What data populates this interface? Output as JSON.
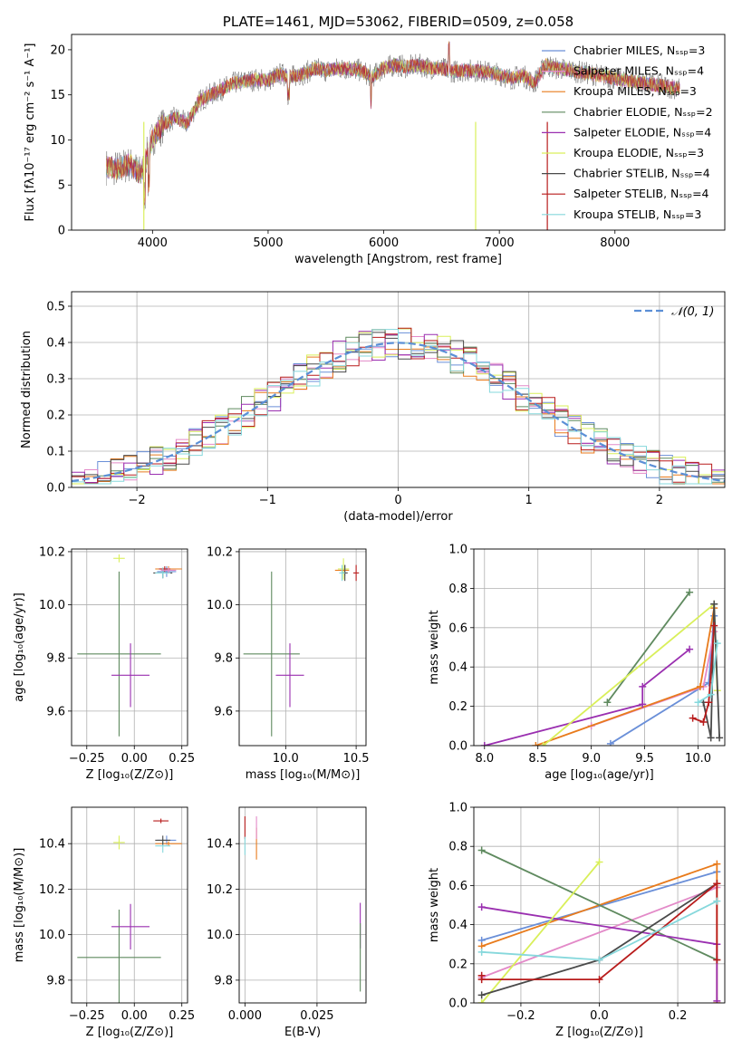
{
  "chart_data": [
    {
      "type": "line",
      "title": "PLATE=1461, MJD=53062, FIBERID=0509, z=0.058",
      "xlabel": "wavelength [Angstrom, rest frame]",
      "ylabel": "Flux [fλ10⁻¹⁷ erg cm⁻² s⁻¹ A⁻¹]",
      "xlim": [
        3300,
        8950
      ],
      "ylim": [
        0,
        21.7
      ],
      "xticks": [
        4000,
        5000,
        6000,
        7000,
        8000
      ],
      "yticks": [
        0,
        5,
        10,
        15,
        20
      ],
      "legend_position": "right",
      "legend": [
        {
          "label": "Chabrier MILES, Nₛₛₚ=3",
          "color": "#6a8fd8"
        },
        {
          "label": "Salpeter MILES, Nₛₛₚ=4",
          "color": "#e38ac8"
        },
        {
          "label": "Kroupa MILES, Nₛₛₚ=3",
          "color": "#e87b1c"
        },
        {
          "label": "Chabrier ELODIE, Nₛₛₚ=2",
          "color": "#5f8a5f"
        },
        {
          "label": "Salpeter ELODIE, Nₛₛₚ=4",
          "color": "#9a2fb0"
        },
        {
          "label": "Kroupa ELODIE, Nₛₛₚ=3",
          "color": "#d9ef5a"
        },
        {
          "label": "Chabrier STELIB, Nₛₛₚ=4",
          "color": "#4a4a4a"
        },
        {
          "label": "Salpeter STELIB, Nₛₛₚ=4",
          "color": "#b81c1c"
        },
        {
          "label": "Kroupa STELIB, Nₛₛₚ=3",
          "color": "#86d8dc"
        }
      ],
      "continuum": {
        "x": [
          3600,
          3700,
          3800,
          3900,
          4000,
          4100,
          4200,
          4300,
          4400,
          4500,
          4600,
          4700,
          4800,
          4900,
          5000,
          5100,
          5200,
          5300,
          5400,
          5500,
          5600,
          5700,
          5800,
          5900,
          6000,
          6100,
          6200,
          6300,
          6400,
          6500,
          6600,
          6700,
          6800,
          6900,
          7000,
          7100,
          7200,
          7300,
          7400,
          7500,
          7600,
          7700,
          7800,
          7900,
          8000,
          8100,
          8200,
          8300,
          8400,
          8500,
          8600
        ],
        "y": [
          7.0,
          6.8,
          7.3,
          6.2,
          10.2,
          11.8,
          12.5,
          11.8,
          14.3,
          15.0,
          15.6,
          16.3,
          16.5,
          16.7,
          16.6,
          17.3,
          17.0,
          17.3,
          17.9,
          17.7,
          17.9,
          17.9,
          17.7,
          17.0,
          18.0,
          18.3,
          18.1,
          18.3,
          18.0,
          17.9,
          17.6,
          17.7,
          17.7,
          17.5,
          17.3,
          16.8,
          17.2,
          16.3,
          18.3,
          17.9,
          17.8,
          17.5,
          17.3,
          17.1,
          16.8,
          16.6,
          16.4,
          16.2,
          16.0,
          15.8,
          15.7
        ]
      }
    },
    {
      "type": "step",
      "xlabel": "(data-model)/error",
      "ylabel": "Normed distribution",
      "xlim": [
        -2.5,
        2.5
      ],
      "ylim": [
        0,
        0.54
      ],
      "xticks": [
        -2,
        -1,
        0,
        1,
        2
      ],
      "yticks": [
        0.0,
        0.1,
        0.2,
        0.3,
        0.4,
        0.5
      ],
      "legend": [
        {
          "label": "𝒩(0, 1)",
          "color": "#5b8fd6",
          "style": "dashed"
        }
      ],
      "bin_width": 0.1,
      "bins_start": -2.5
    },
    {
      "type": "scatter",
      "xlabel": "Z [log₁₀(Z/Z⊙)]",
      "ylabel": "age  [log₁₀(age/yr)]",
      "xlim": [
        -0.33,
        0.28
      ],
      "ylim": [
        9.47,
        10.21
      ],
      "xticks": [
        -0.25,
        0.0,
        0.25
      ],
      "yticks": [
        9.6,
        9.8,
        10.0,
        10.2
      ],
      "points": [
        {
          "model": "Chabrier ELODIE",
          "x": -0.08,
          "y": 9.815,
          "xerr": 0.22,
          "yerr": 0.31
        },
        {
          "model": "Salpeter ELODIE",
          "x": -0.02,
          "y": 9.735,
          "xerr": 0.1,
          "yerr": 0.12
        },
        {
          "model": "Kroupa ELODIE",
          "x": -0.08,
          "y": 10.175,
          "xerr": 0.03,
          "yerr": 0.015
        },
        {
          "model": "Chabrier MILES",
          "x": 0.17,
          "y": 10.125,
          "xerr": 0.05,
          "yerr": 0.02
        },
        {
          "model": "Kroupa MILES",
          "x": 0.18,
          "y": 10.135,
          "xerr": 0.07,
          "yerr": 0.01
        },
        {
          "model": "Chabrier STELIB",
          "x": 0.15,
          "y": 10.12,
          "xerr": 0.05,
          "yerr": 0.02
        },
        {
          "model": "Salpeter STELIB",
          "x": 0.16,
          "y": 10.135,
          "xerr": 0.03,
          "yerr": 0.01
        },
        {
          "model": "Kroupa STELIB",
          "x": 0.15,
          "y": 10.12,
          "xerr": 0.04,
          "yerr": 0.02
        },
        {
          "model": "Salpeter MILES",
          "x": 0.18,
          "y": 10.13,
          "xerr": 0.04,
          "yerr": 0.01
        }
      ]
    },
    {
      "type": "scatter",
      "xlabel": "mass [log₁₀(M/M⊙)]",
      "ylabel": "",
      "xlim": [
        9.67,
        10.57
      ],
      "ylim": [
        9.47,
        10.21
      ],
      "xticks": [
        10.0,
        10.5
      ],
      "yticks": [
        9.6,
        9.8,
        10.0,
        10.2
      ],
      "points": [
        {
          "model": "Chabrier ELODIE",
          "x": 9.9,
          "y": 9.815,
          "xerr": 0.2,
          "yerr": 0.31
        },
        {
          "model": "Salpeter ELODIE",
          "x": 10.03,
          "y": 9.735,
          "xerr": 0.1,
          "yerr": 0.12
        },
        {
          "model": "Kroupa ELODIE",
          "x": 10.41,
          "y": 10.135,
          "xerr": 0.04,
          "yerr": 0.04
        },
        {
          "model": "Chabrier MILES",
          "x": 10.42,
          "y": 10.13,
          "xerr": 0.02,
          "yerr": 0.02
        },
        {
          "model": "Kroupa MILES",
          "x": 10.4,
          "y": 10.13,
          "xerr": 0.05,
          "yerr": 0.01
        },
        {
          "model": "Chabrier STELIB",
          "x": 10.42,
          "y": 10.12,
          "xerr": 0.02,
          "yerr": 0.03
        },
        {
          "model": "Salpeter STELIB",
          "x": 10.5,
          "y": 10.12,
          "xerr": 0.02,
          "yerr": 0.03
        },
        {
          "model": "Kroupa STELIB",
          "x": 10.4,
          "y": 10.12,
          "xerr": 0.02,
          "yerr": 0.03
        }
      ]
    },
    {
      "type": "line",
      "xlabel": "age  [log₁₀(age/yr)]",
      "ylabel": "mass weight",
      "xlim": [
        7.9,
        10.25
      ],
      "ylim": [
        0,
        1.0
      ],
      "xticks": [
        8.0,
        8.5,
        9.0,
        9.5,
        10.0
      ],
      "yticks": [
        0.0,
        0.2,
        0.4,
        0.6,
        0.8,
        1.0
      ],
      "series": [
        {
          "model": "Chabrier MILES",
          "x": [
            9.18,
            10.1,
            10.15
          ],
          "y": [
            0.01,
            0.32,
            0.66
          ]
        },
        {
          "model": "Salpeter MILES",
          "x": [
            9.0,
            10.05,
            10.15
          ],
          "y": [
            0.1,
            0.3,
            0.58
          ]
        },
        {
          "model": "Kroupa MILES",
          "x": [
            8.48,
            10.02,
            10.15
          ],
          "y": [
            0.0,
            0.3,
            0.7
          ]
        },
        {
          "model": "Chabrier ELODIE",
          "x": [
            9.15,
            9.92
          ],
          "y": [
            0.22,
            0.78
          ]
        },
        {
          "model": "Salpeter ELODIE",
          "x": [
            8.0,
            9.48,
            9.48,
            9.92
          ],
          "y": [
            0.0,
            0.21,
            0.3,
            0.49
          ]
        },
        {
          "model": "Kroupa ELODIE",
          "x": [
            8.55,
            10.15,
            10.18
          ],
          "y": [
            0.0,
            0.72,
            0.28
          ]
        },
        {
          "model": "Chabrier STELIB",
          "x": [
            10.05,
            10.12,
            10.15,
            10.2
          ],
          "y": [
            0.22,
            0.04,
            0.72,
            0.04
          ]
        },
        {
          "model": "Salpeter STELIB",
          "x": [
            9.95,
            10.05,
            10.1,
            10.15
          ],
          "y": [
            0.14,
            0.12,
            0.22,
            0.61
          ]
        },
        {
          "model": "Kroupa STELIB",
          "x": [
            10.0,
            10.12,
            10.18
          ],
          "y": [
            0.22,
            0.26,
            0.52
          ]
        }
      ]
    },
    {
      "type": "scatter",
      "xlabel": "Z [log₁₀(Z/Z⊙)]",
      "ylabel": "mass [log₁₀(M/M⊙)]",
      "xlim": [
        -0.33,
        0.28
      ],
      "ylim": [
        9.7,
        10.56
      ],
      "xticks": [
        -0.25,
        0.0,
        0.25
      ],
      "yticks": [
        9.8,
        10.0,
        10.2,
        10.4
      ],
      "points": [
        {
          "model": "Chabrier ELODIE",
          "x": -0.08,
          "y": 9.9,
          "xerr": 0.22,
          "yerr": 0.21
        },
        {
          "model": "Salpeter ELODIE",
          "x": -0.02,
          "y": 10.035,
          "xerr": 0.1,
          "yerr": 0.1
        },
        {
          "model": "Kroupa ELODIE",
          "x": -0.08,
          "y": 10.405,
          "xerr": 0.03,
          "yerr": 0.03
        },
        {
          "model": "Chabrier MILES",
          "x": 0.17,
          "y": 10.415,
          "xerr": 0.05,
          "yerr": 0.02
        },
        {
          "model": "Kroupa MILES",
          "x": 0.18,
          "y": 10.4,
          "xerr": 0.07,
          "yerr": 0.01
        },
        {
          "model": "Salpeter STELIB",
          "x": 0.14,
          "y": 10.5,
          "xerr": 0.04,
          "yerr": 0.01
        },
        {
          "model": "Kroupa STELIB",
          "x": 0.15,
          "y": 10.39,
          "xerr": 0.04,
          "yerr": 0.03
        },
        {
          "model": "Chabrier STELIB",
          "x": 0.15,
          "y": 10.415,
          "xerr": 0.04,
          "yerr": 0.02
        }
      ]
    },
    {
      "type": "scatter",
      "xlabel": "E(B-V)",
      "ylabel": "",
      "xlim": [
        -0.002,
        0.042
      ],
      "ylim": [
        9.7,
        10.56
      ],
      "xticks": [
        0.0,
        0.025
      ],
      "xticklabels": [
        "0.000",
        "0.025"
      ],
      "yticks": [
        9.8,
        10.0,
        10.2,
        10.4
      ],
      "points": [
        {
          "model": "Salpeter STELIB",
          "x": 0.0,
          "y": 10.47,
          "xerr": 0.0,
          "yerr": 0.05
        },
        {
          "model": "Kroupa STELIB",
          "x": 0.0,
          "y": 10.39,
          "xerr": 0.0,
          "yerr": 0.04
        },
        {
          "model": "Kroupa MILES",
          "x": 0.004,
          "y": 10.4,
          "xerr": 0.0,
          "yerr": 0.07
        },
        {
          "model": "Salpeter MILES",
          "x": 0.004,
          "y": 10.47,
          "xerr": 0.0,
          "yerr": 0.05
        },
        {
          "model": "Salpeter ELODIE",
          "x": 0.04,
          "y": 10.04,
          "xerr": 0.0,
          "yerr": 0.1
        },
        {
          "model": "Chabrier ELODIE",
          "x": 0.04,
          "y": 9.9,
          "xerr": 0.0,
          "yerr": 0.15
        }
      ]
    },
    {
      "type": "line",
      "xlabel": "Z [log₁₀(Z/Z⊙)]",
      "ylabel": "mass weight",
      "xlim": [
        -0.32,
        0.32
      ],
      "ylim": [
        0,
        1.0
      ],
      "xticks": [
        -0.2,
        0.0,
        0.2
      ],
      "yticks": [
        0.0,
        0.2,
        0.4,
        0.6,
        0.8,
        1.0
      ],
      "series": [
        {
          "model": "Chabrier MILES",
          "x": [
            -0.3,
            0.3
          ],
          "y": [
            0.32,
            0.67
          ]
        },
        {
          "model": "Salpeter MILES",
          "x": [
            -0.3,
            0.3
          ],
          "y": [
            0.13,
            0.59
          ]
        },
        {
          "model": "Kroupa MILES",
          "x": [
            -0.3,
            0.3,
            0.3
          ],
          "y": [
            0.29,
            0.71,
            0.0
          ]
        },
        {
          "model": "Chabrier ELODIE",
          "x": [
            -0.3,
            0.3
          ],
          "y": [
            0.78,
            0.22
          ]
        },
        {
          "model": "Salpeter ELODIE",
          "x": [
            -0.3,
            0.3,
            0.3
          ],
          "y": [
            0.49,
            0.3,
            0.01
          ]
        },
        {
          "model": "Kroupa ELODIE",
          "x": [
            -0.3,
            0.0
          ],
          "y": [
            0.0,
            0.72
          ]
        },
        {
          "model": "Chabrier STELIB",
          "x": [
            -0.3,
            0.0,
            0.3
          ],
          "y": [
            0.04,
            0.22,
            0.61
          ]
        },
        {
          "model": "Salpeter STELIB",
          "x": [
            -0.3,
            -0.3,
            0.0,
            0.3,
            0.3
          ],
          "y": [
            0.14,
            0.12,
            0.12,
            0.61,
            0.22
          ]
        },
        {
          "model": "Kroupa STELIB",
          "x": [
            -0.3,
            0.0,
            0.3
          ],
          "y": [
            0.26,
            0.22,
            0.52
          ]
        }
      ]
    }
  ]
}
